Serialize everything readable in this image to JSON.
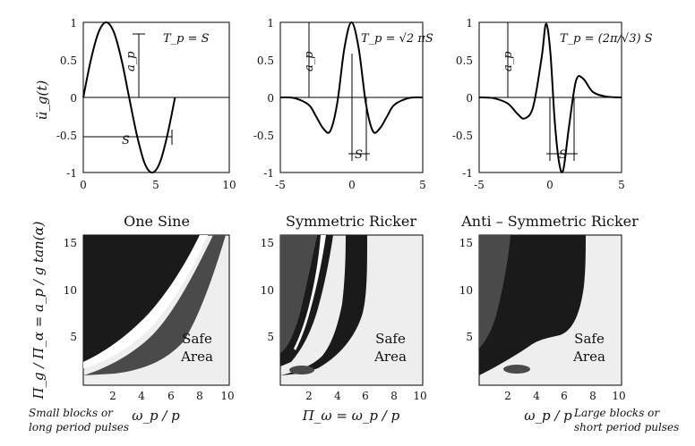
{
  "chart_data": [
    {
      "type": "line",
      "title": "",
      "ylabel": "ü_g(t)",
      "xlim": [
        0,
        10
      ],
      "ylim": [
        -1,
        1
      ],
      "xticks": [
        "0",
        "5",
        "10"
      ],
      "yticks": [
        "1",
        "0.5",
        "0",
        "-0.5",
        "-1"
      ],
      "series": [
        {
          "values_x": [
            0,
            0.52,
            1.05,
            1.57,
            2.09,
            2.62,
            3.14,
            3.67,
            4.19,
            4.71,
            5.24,
            5.76,
            6.28
          ],
          "values_y": [
            0,
            0.5,
            0.87,
            1,
            0.87,
            0.5,
            0,
            -0.5,
            -0.87,
            -1,
            -0.87,
            -0.5,
            0
          ]
        }
      ],
      "annotations": {
        "formula": "T_p = S",
        "amplitude": "a_p",
        "span": "S"
      }
    },
    {
      "type": "line",
      "title": "",
      "xlim": [
        -5,
        5
      ],
      "ylim": [
        -1,
        1
      ],
      "xticks": [
        "-5",
        "0",
        "5"
      ],
      "yticks": [
        "1",
        "0.5",
        "0",
        "-0.5",
        "-1"
      ],
      "series": [
        {
          "values_x": [
            -5,
            -4,
            -3,
            -2.5,
            -2,
            -1.5,
            -1,
            -0.5,
            0,
            0.5,
            1,
            1.5,
            2,
            2.5,
            3,
            4,
            5
          ],
          "values_y": [
            0,
            -0.01,
            -0.1,
            -0.25,
            -0.41,
            -0.45,
            -0.07,
            0.66,
            1,
            0.66,
            -0.07,
            -0.45,
            -0.41,
            -0.25,
            -0.1,
            -0.01,
            0
          ]
        }
      ],
      "annotations": {
        "formula": "T_p = √2 πS",
        "amplitude": "a_p",
        "span": "S"
      }
    },
    {
      "type": "line",
      "title": "",
      "xlim": [
        -5,
        5
      ],
      "ylim": [
        -1,
        1
      ],
      "xticks": [
        "-5",
        "0",
        "5"
      ],
      "yticks": [
        "1",
        "0.5",
        "0",
        "-0.5",
        "-1"
      ],
      "series": [
        {
          "values_x": [
            -5,
            -4,
            -3,
            -2.3,
            -1.8,
            -1.2,
            -0.6,
            -0.3,
            0,
            0.3,
            0.6,
            0.9,
            1.3,
            1.8,
            2.3,
            3,
            4,
            5
          ],
          "values_y": [
            0,
            -0.01,
            -0.08,
            -0.22,
            -0.28,
            -0.12,
            0.55,
            0.98,
            0.6,
            -0.3,
            -0.85,
            -0.97,
            -0.4,
            0.22,
            0.25,
            0.07,
            0.01,
            0
          ]
        }
      ],
      "annotations": {
        "formula": "T_p = (2π/√3) S",
        "amplitude": "a_p",
        "span": "S"
      }
    },
    {
      "type": "area",
      "title": "One Sine",
      "xlabel": "ω_p / p",
      "ylabel": "Π_g / Π_α = a_p / g tan(α)",
      "xlim": [
        0,
        10
      ],
      "ylim": [
        0,
        16
      ],
      "xticks": [
        "2",
        "4",
        "6",
        "8",
        "10"
      ],
      "yticks": [
        "5",
        "10",
        "15"
      ],
      "area_label": [
        "Safe",
        "Area"
      ]
    },
    {
      "type": "area",
      "title": "Symmetric Ricker",
      "xlabel": "Π_ω = ω_p / p",
      "xlim": [
        0,
        10
      ],
      "ylim": [
        0,
        16
      ],
      "xticks": [
        "2",
        "4",
        "6",
        "8",
        "10"
      ],
      "yticks": [
        "5",
        "10",
        "15"
      ],
      "area_label": [
        "Safe",
        "Area"
      ]
    },
    {
      "type": "area",
      "title": "Anti – Symmetric Ricker",
      "xlabel": "ω_p / p",
      "xlim": [
        0,
        10
      ],
      "ylim": [
        0,
        16
      ],
      "xticks": [
        "2",
        "4",
        "6",
        "8",
        "10"
      ],
      "yticks": [
        "5",
        "10",
        "15"
      ],
      "area_label": [
        "Safe",
        "Area"
      ]
    }
  ],
  "notes": {
    "left_line1": "Small blocks or",
    "left_line2": "long period pulses",
    "right_line1": "Large blocks or",
    "right_line2": "short period pulses"
  },
  "colors": {
    "dark_region": "#1a1a1a",
    "mid_region": "#4a4a4a",
    "safe_region": "#eeeeee",
    "line": "#000000"
  }
}
